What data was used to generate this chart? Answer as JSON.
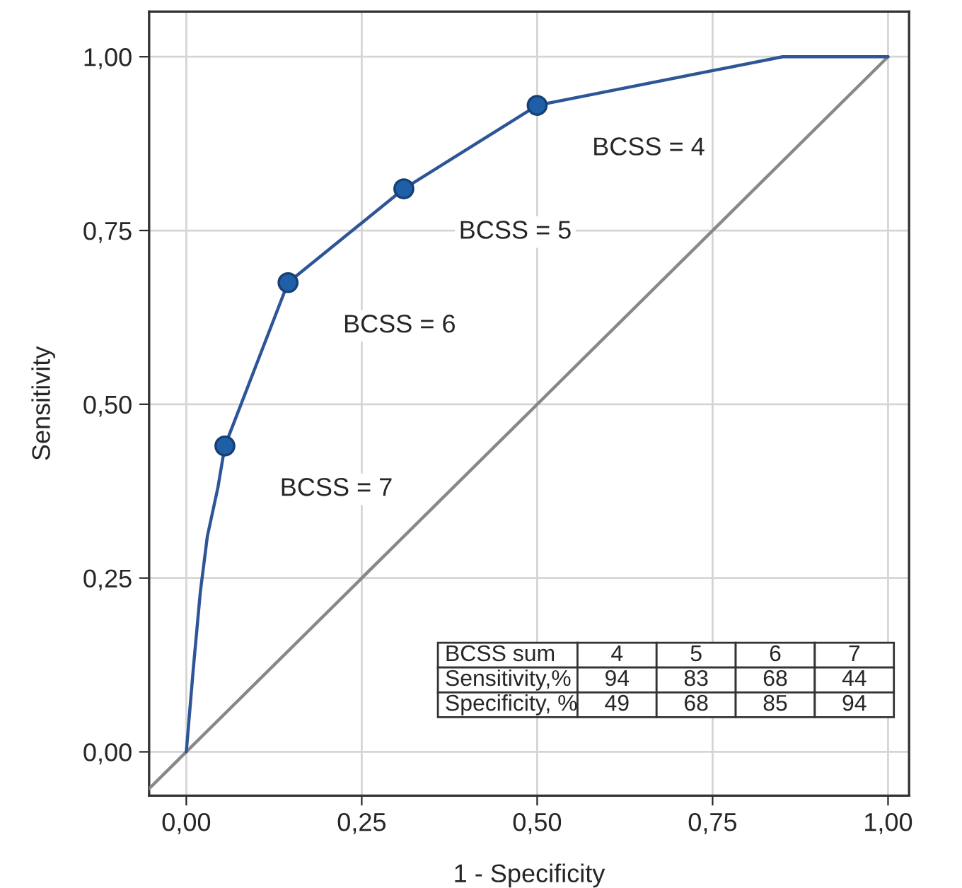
{
  "chart_data": {
    "type": "line",
    "xlabel": "1 - Specificity",
    "ylabel": "Sensitivity",
    "xlim": [
      -0.053,
      1.03
    ],
    "ylim": [
      -0.063,
      1.065
    ],
    "xticks": [
      {
        "value": 0,
        "label": "0,00"
      },
      {
        "value": 0.25,
        "label": "0,25"
      },
      {
        "value": 0.5,
        "label": "0,50"
      },
      {
        "value": 0.75,
        "label": "0,75"
      },
      {
        "value": 1,
        "label": "1,00"
      }
    ],
    "yticks": [
      {
        "value": 0,
        "label": "0,00"
      },
      {
        "value": 0.25,
        "label": "0,25"
      },
      {
        "value": 0.5,
        "label": "0,50"
      },
      {
        "value": 0.75,
        "label": "0,75"
      },
      {
        "value": 1,
        "label": "1,00"
      }
    ],
    "grid": true,
    "legend": false,
    "series": [
      {
        "color": "#888888",
        "x": [
          -0.053,
          1.0
        ],
        "values": [
          -0.053,
          1.0
        ],
        "marker": "none"
      },
      {
        "color": "#2d5597",
        "x": [
          0,
          0.01,
          0.02,
          0.03,
          0.045,
          0.055,
          0.145,
          0.31,
          0.5,
          0.85,
          1.0
        ],
        "values": [
          0,
          0.12,
          0.23,
          0.31,
          0.38,
          0.44,
          0.675,
          0.81,
          0.93,
          1.0,
          1.0
        ],
        "marker": "none"
      },
      {
        "type": "scatter",
        "color": "#1f5fa8",
        "x": [
          0.055,
          0.145,
          0.31,
          0.5
        ],
        "values": [
          0.44,
          0.675,
          0.81,
          0.93
        ],
        "marker": "circle"
      }
    ],
    "annotations": [
      {
        "text": "BCSS = 4",
        "x": 0.5,
        "y": 0.93
      },
      {
        "text": "BCSS = 5",
        "x": 0.31,
        "y": 0.81
      },
      {
        "text": "BCSS = 6",
        "x": 0.145,
        "y": 0.675
      },
      {
        "text": "BCSS = 7",
        "x": 0.055,
        "y": 0.44
      },
      "BCSS sum",
      "4",
      "5",
      "6",
      "7",
      "Sensitivity,%",
      "94",
      "83",
      "68",
      "44",
      "Specificity, %",
      "49",
      "68",
      "85",
      "94"
    ]
  }
}
